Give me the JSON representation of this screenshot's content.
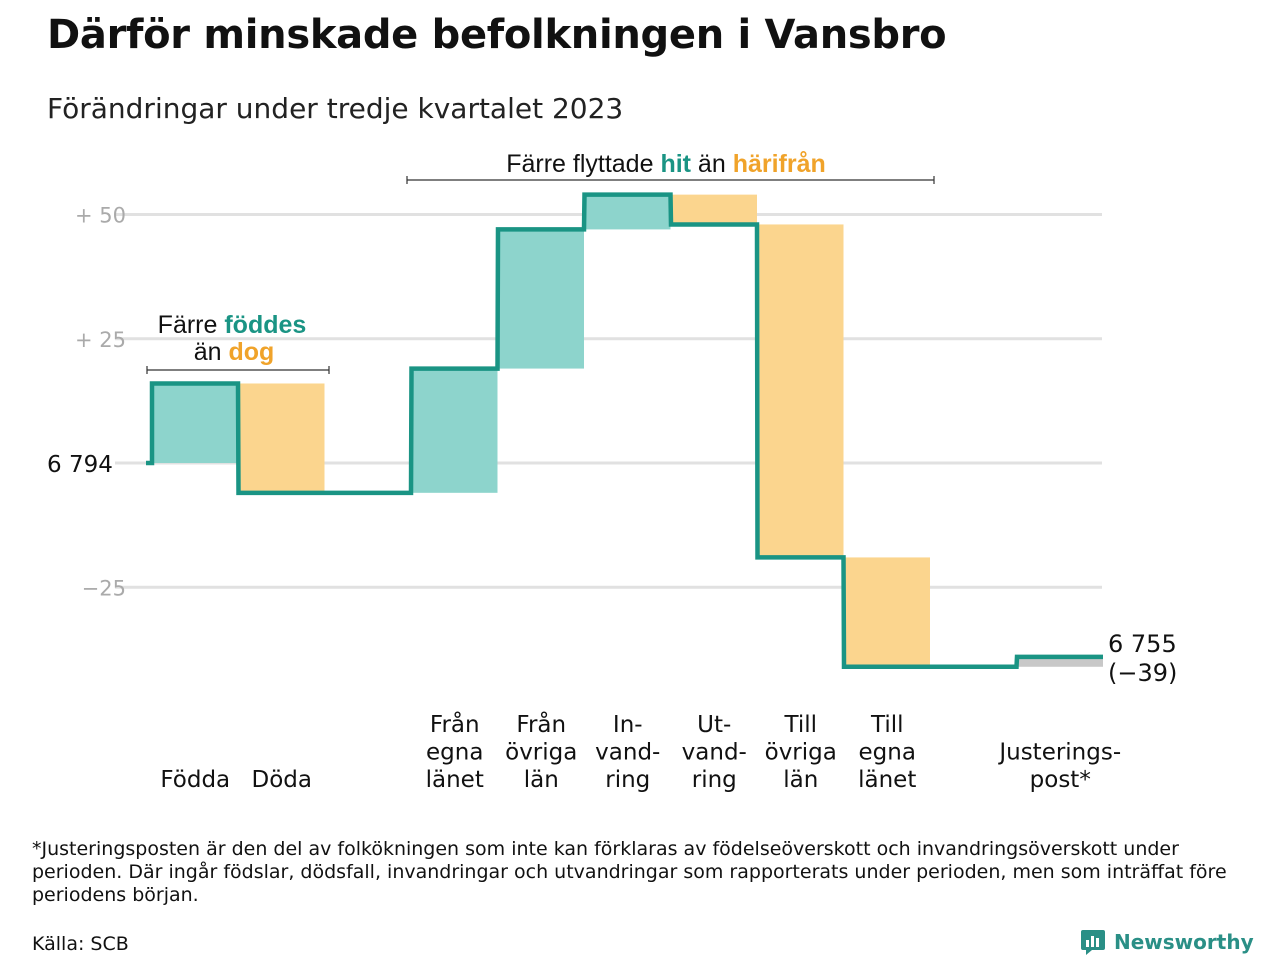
{
  "title": "Därför minskade befolkningen i Vansbro",
  "subtitle": "Förändringar under tredje kvartalet 2023",
  "chart_data": {
    "type": "waterfall",
    "start_value": 6794,
    "start_label": "6  794",
    "end_value": 6755,
    "end_label": "6 755",
    "end_change_label": "(−39)",
    "ylim": [
      -45,
      55
    ],
    "yticks": [
      {
        "value": 50,
        "label": "+  50"
      },
      {
        "value": 25,
        "label": "+  25"
      },
      {
        "value": -25,
        "label": "−25"
      }
    ],
    "grid": true,
    "steps": [
      {
        "label": [
          "Födda"
        ],
        "change": 16,
        "kind": "increase"
      },
      {
        "label": [
          "Döda"
        ],
        "change": -22,
        "kind": "decrease"
      },
      {
        "label": [
          ""
        ],
        "change": 0,
        "kind": "gap"
      },
      {
        "label": [
          "Från",
          "egna",
          "länet"
        ],
        "change": 25,
        "kind": "increase"
      },
      {
        "label": [
          "Från",
          "övriga",
          "län"
        ],
        "change": 28,
        "kind": "increase"
      },
      {
        "label": [
          "In-",
          "vand-",
          "ring"
        ],
        "change": 7,
        "kind": "increase"
      },
      {
        "label": [
          "Ut-",
          "vand-",
          "ring"
        ],
        "change": -6,
        "kind": "decrease"
      },
      {
        "label": [
          "Till",
          "övriga",
          "län"
        ],
        "change": -67,
        "kind": "decrease"
      },
      {
        "label": [
          "Till",
          "egna",
          "länet"
        ],
        "change": -22,
        "kind": "decrease"
      },
      {
        "label": [
          ""
        ],
        "change": 0,
        "kind": "gap"
      },
      {
        "label": [
          "Justerings-",
          "post*"
        ],
        "change": 2,
        "kind": "adjustment"
      }
    ],
    "annotations": {
      "births_deaths": {
        "line1_a": "Färre ",
        "line1_b": "föddes",
        "line2_a": "än ",
        "line2_b": "dog"
      },
      "migration": {
        "part_a": "Färre flyttade ",
        "part_b": "hit",
        "part_c": " än ",
        "part_d": "härifrån"
      }
    },
    "colors": {
      "increase": "#8dd4cc",
      "decrease": "#fbd58e",
      "adjustment": "#c8c8c8",
      "line": "#1a9484",
      "teal_text": "#1a9484",
      "orange_text": "#f0a32a",
      "grid": "#e1e1e1",
      "tick_text": "#aaaaaa"
    }
  },
  "footnote": "*Justeringsposten är den del av folkökningen som inte kan förklaras av födelseöverskott och invandringsöverskott under perioden. Där ingår födslar, dödsfall, invandringar och utvandringar som rapporterats under perioden, men som inträffat före periodens början.",
  "source": "Källa: SCB",
  "brand": "Newsworthy"
}
